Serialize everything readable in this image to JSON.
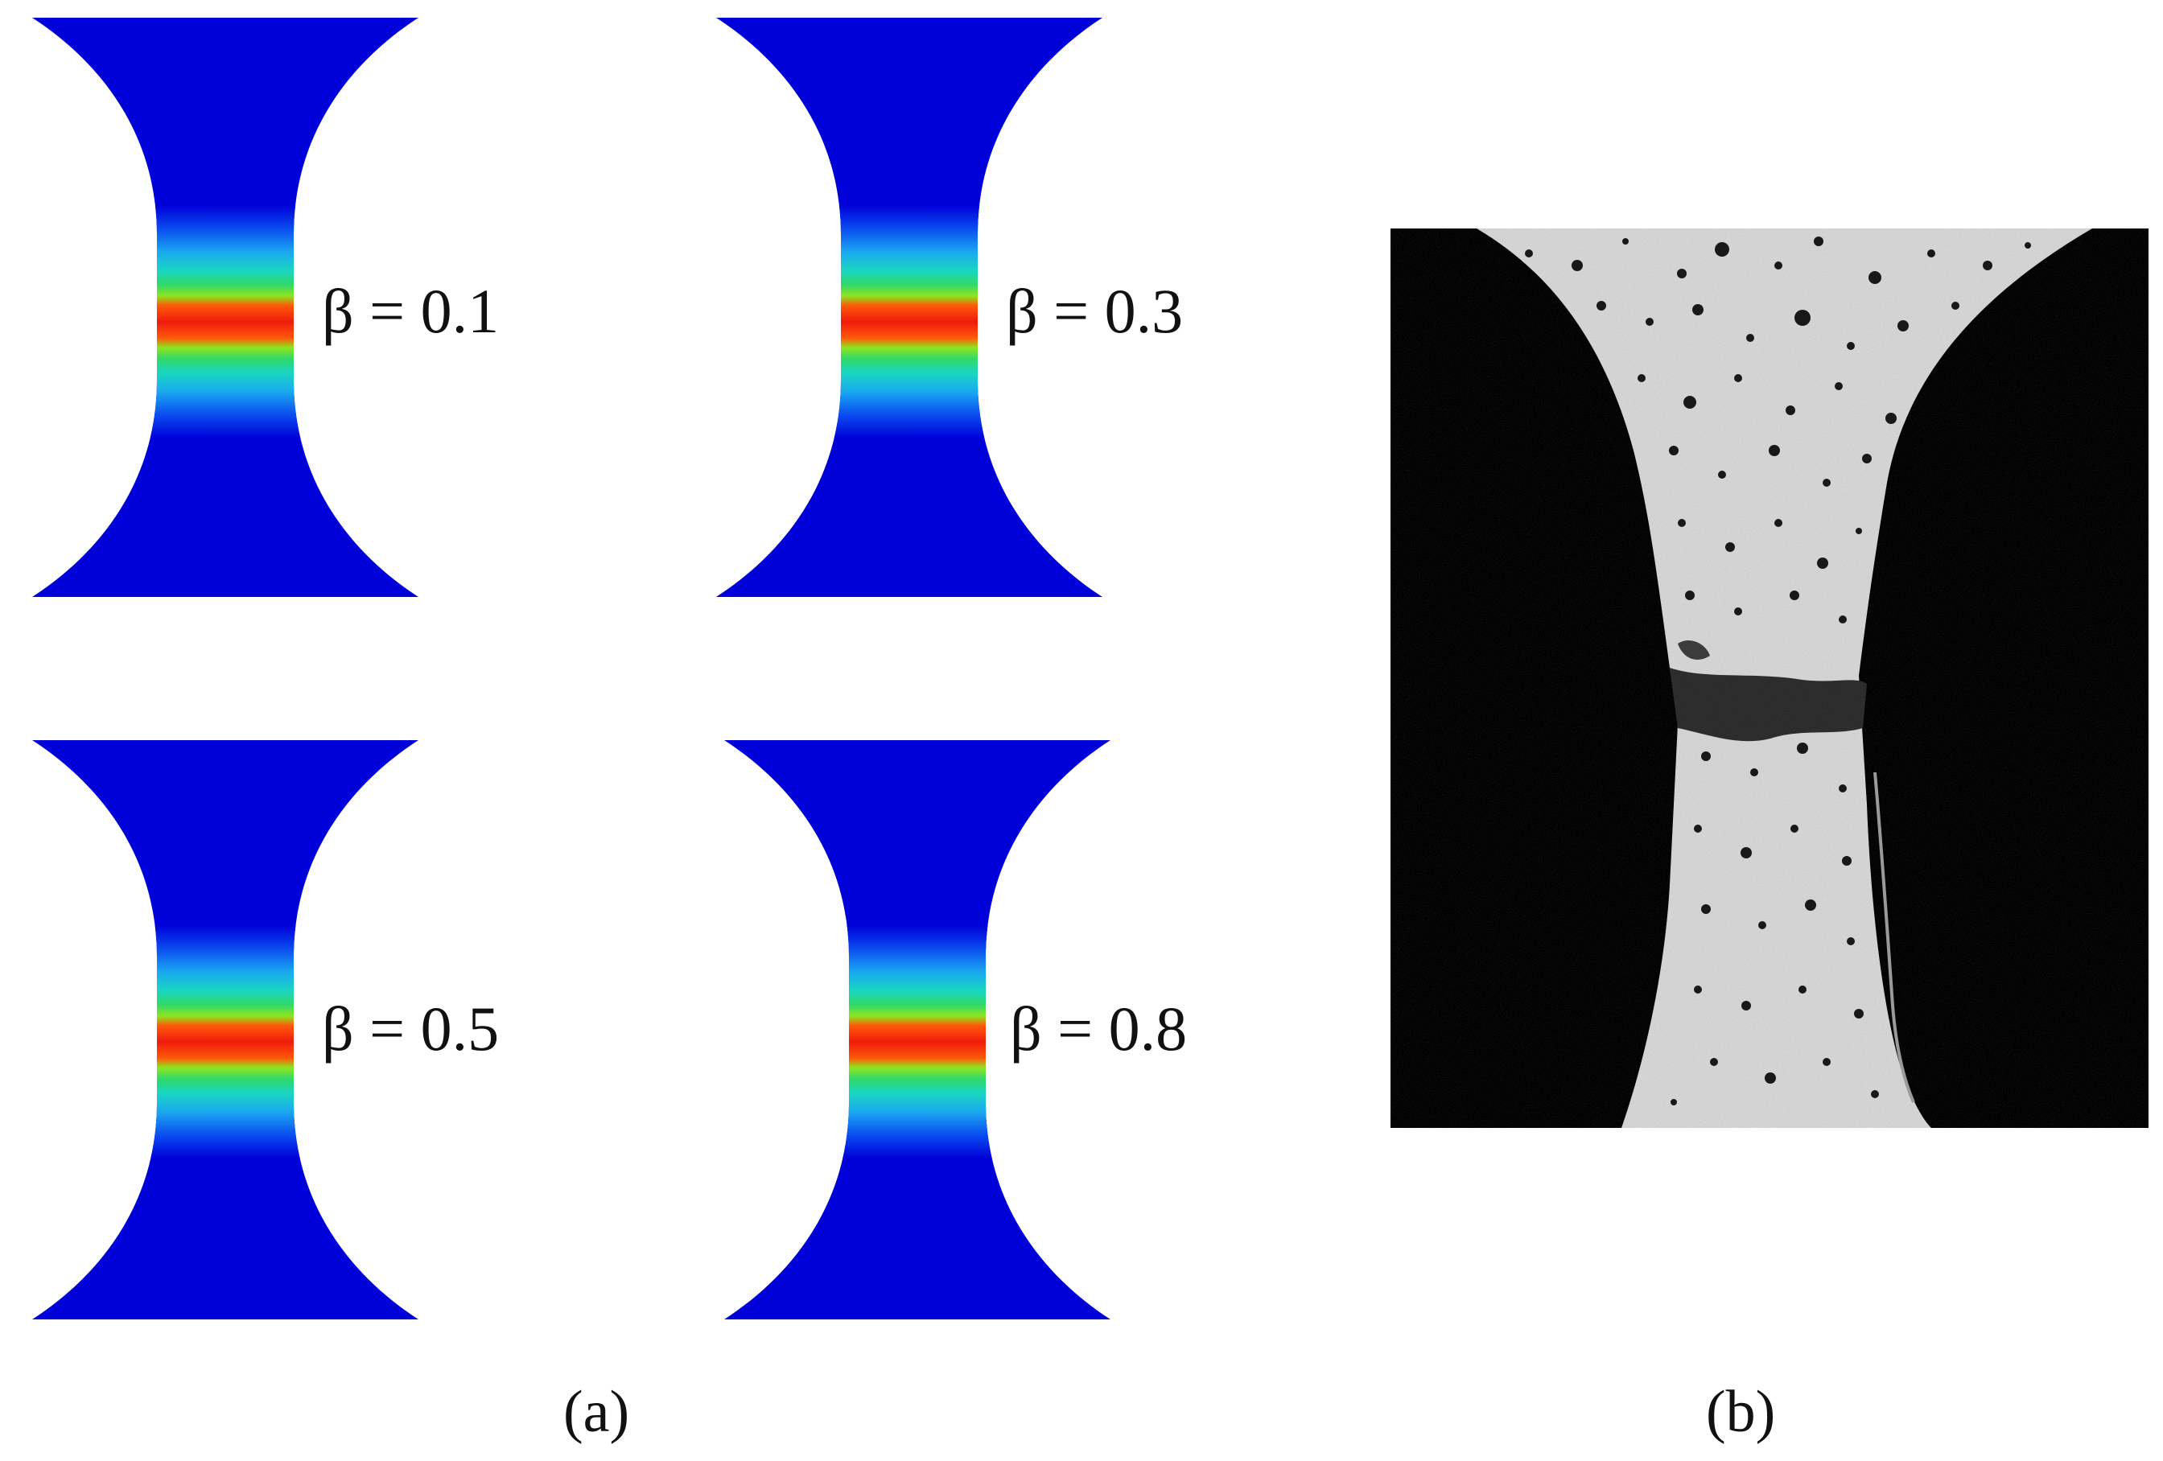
{
  "panel_a": {
    "caption": "(a)",
    "specimens": [
      {
        "label": "β = 0.1"
      },
      {
        "label": "β = 0.3"
      },
      {
        "label": "β = 0.5"
      },
      {
        "label": "β = 0.8"
      }
    ],
    "colormap": [
      "#0000d8",
      "#0a4cf0",
      "#1aa8f0",
      "#19d6c2",
      "#2fd86a",
      "#8ee51e",
      "#f2c20e",
      "#ff5a0a",
      "#ee1b0b"
    ]
  },
  "panel_b": {
    "caption": "(b)"
  }
}
